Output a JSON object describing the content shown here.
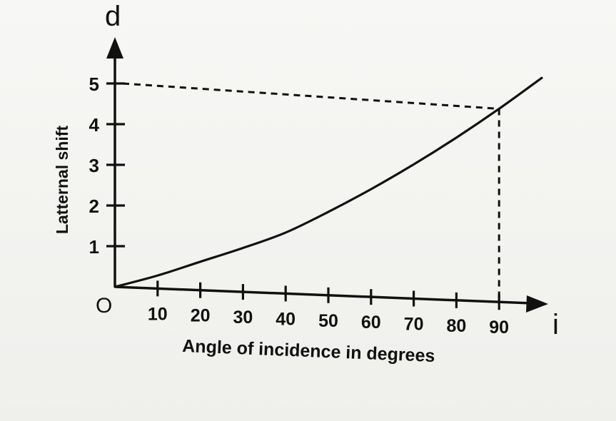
{
  "chart_data": {
    "type": "line",
    "title": "",
    "xlabel": "Angle of incidence in degrees",
    "ylabel": "Latternal shift",
    "x_axis_symbol": "i",
    "y_axis_symbol": "d",
    "origin_label": "O",
    "xlim": [
      0,
      105
    ],
    "ylim": [
      0,
      6
    ],
    "x_ticks": [
      10,
      20,
      30,
      40,
      50,
      60,
      70,
      80,
      90
    ],
    "x_tick_labels": [
      "10",
      "20",
      "30",
      "40",
      "50",
      "60",
      "70",
      "80",
      "90"
    ],
    "y_ticks": [
      1,
      2,
      3,
      4,
      5
    ],
    "y_tick_labels": [
      "1",
      "2",
      "3",
      "4",
      "5"
    ],
    "grid": false,
    "series": [
      {
        "x": [
          0,
          10,
          20,
          30,
          40,
          50,
          60,
          70,
          80,
          90,
          100
        ],
        "y": [
          0,
          0.32,
          0.7,
          1.08,
          1.5,
          2.05,
          2.65,
          3.3,
          4.0,
          4.75,
          5.55
        ]
      }
    ],
    "reference_lines": {
      "x_value": 90,
      "y_value": 5
    }
  }
}
